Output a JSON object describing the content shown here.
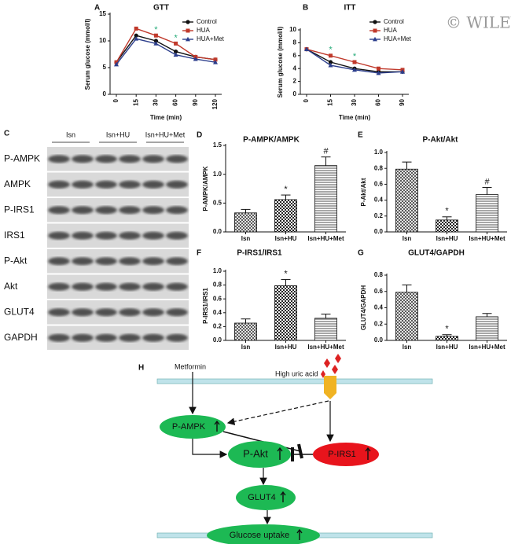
{
  "chart_data": [
    {
      "type": "line",
      "panel": "A",
      "title": "GTT",
      "ylabel": "Serum glucose (mmol/l)",
      "xlabel": "Time (min)",
      "categories": [
        "0",
        "15",
        "30",
        "60",
        "90",
        "120"
      ],
      "series": [
        {
          "name": "Control",
          "color": "#111111",
          "marker": "circle",
          "values": [
            6,
            11,
            10,
            8,
            7,
            6.5
          ]
        },
        {
          "name": "HUA",
          "color": "#c0392b",
          "marker": "square",
          "values": [
            6,
            12.3,
            11,
            9.5,
            7,
            6.5
          ]
        },
        {
          "name": "HUA+Met",
          "color": "#2c3e8c",
          "marker": "triangle",
          "values": [
            5.6,
            10.4,
            9.5,
            7.4,
            6.6,
            6
          ]
        }
      ],
      "annotations": [
        {
          "category": "30",
          "text": "*"
        },
        {
          "category": "60",
          "text": "*"
        }
      ],
      "ylim": [
        0,
        15
      ],
      "yticks": [
        0,
        5,
        10,
        15
      ],
      "legend": "top-right"
    },
    {
      "type": "line",
      "panel": "B",
      "title": "ITT",
      "ylabel": "Serum glucose (mmol/l)",
      "xlabel": "Time (min)",
      "categories": [
        "0",
        "15",
        "30",
        "60",
        "90"
      ],
      "series": [
        {
          "name": "Control",
          "color": "#111111",
          "marker": "circle",
          "values": [
            7,
            5,
            4,
            3.5,
            3.5
          ]
        },
        {
          "name": "HUA",
          "color": "#c0392b",
          "marker": "square",
          "values": [
            7,
            6,
            5,
            4,
            3.8
          ]
        },
        {
          "name": "HUA+Met",
          "color": "#2c3e8c",
          "marker": "triangle",
          "values": [
            7,
            4.5,
            3.8,
            3.3,
            3.5
          ]
        }
      ],
      "annotations": [
        {
          "category": "15",
          "text": "*"
        },
        {
          "category": "30",
          "text": "*"
        }
      ],
      "ylim": [
        0,
        10
      ],
      "yticks": [
        0,
        2,
        4,
        6,
        8,
        10
      ],
      "legend": "top-right"
    },
    {
      "type": "bar",
      "panel": "D",
      "title": "P-AMPK/AMPK",
      "ylabel": "P-AMPK/AMPK",
      "categories": [
        "Isn",
        "Isn+HU",
        "Isn+HU+Met"
      ],
      "values": [
        0.33,
        0.56,
        1.15
      ],
      "errors": [
        0.06,
        0.08,
        0.15
      ],
      "markers": [
        null,
        "*",
        "#"
      ],
      "ylim": [
        0,
        1.5
      ],
      "yticks": [
        {
          "value": 0,
          "label": "0.0"
        },
        {
          "value": 0.5,
          "label": "0.5"
        },
        {
          "value": 1,
          "label": "1.0"
        },
        {
          "value": 1.5,
          "label": "1.5"
        }
      ]
    },
    {
      "type": "bar",
      "panel": "E",
      "title": "P-Akt/Akt",
      "ylabel": "P-Akt/Akt",
      "categories": [
        "Isn",
        "Isn+HU",
        "Isn+HU+Met"
      ],
      "values": [
        0.79,
        0.15,
        0.47
      ],
      "errors": [
        0.09,
        0.04,
        0.09
      ],
      "markers": [
        null,
        "*",
        "#"
      ],
      "ylim": [
        0,
        1
      ],
      "yticks": [
        {
          "value": 0,
          "label": "0.0"
        },
        0.2,
        0.4,
        0.6,
        0.8,
        {
          "value": 1,
          "label": "1.0"
        }
      ]
    },
    {
      "type": "bar",
      "panel": "F",
      "title": "P-IRS1/IRS1",
      "ylabel": "P-IRS1/IRS1",
      "categories": [
        "Isn",
        "Isn+HU",
        "Isn+HU+Met"
      ],
      "values": [
        0.25,
        0.79,
        0.32
      ],
      "errors": [
        0.06,
        0.09,
        0.06
      ],
      "markers": [
        null,
        "*",
        null
      ],
      "ylim": [
        0,
        1
      ],
      "yticks": [
        {
          "value": 0,
          "label": "0.0"
        },
        0.2,
        0.4,
        0.6,
        0.8,
        {
          "value": 1,
          "label": "1.0"
        }
      ]
    },
    {
      "type": "bar",
      "panel": "G",
      "title": "GLUT4/GAPDH",
      "ylabel": "GLUT4/GAPDH",
      "categories": [
        "Isn",
        "Isn+HU",
        "Isn+HU+Met"
      ],
      "values": [
        0.59,
        0.05,
        0.29
      ],
      "errors": [
        0.09,
        0.02,
        0.04
      ],
      "markers": [
        null,
        "*",
        null
      ],
      "ylim": [
        0,
        0.8
      ],
      "yticks": [
        {
          "value": 0,
          "label": "0.0"
        },
        0.2,
        0.4,
        0.6,
        0.8
      ]
    }
  ],
  "watermark": "© WILEY",
  "blot": {
    "panel": "C",
    "groups": [
      "Isn",
      "Isn+HU",
      "Isn+HU+Met"
    ],
    "rows": [
      "P-AMPK",
      "AMPK",
      "P-IRS1",
      "IRS1",
      "P-Akt",
      "Akt",
      "GLUT4",
      "GAPDH"
    ]
  },
  "diagram": {
    "panel": "H",
    "metformin": "Metformin",
    "uric_acid": "High uric acid",
    "nodes": [
      "P-AMPK",
      "P-Akt",
      "P-IRS1",
      "GLUT4",
      "Glucose uptake"
    ]
  }
}
